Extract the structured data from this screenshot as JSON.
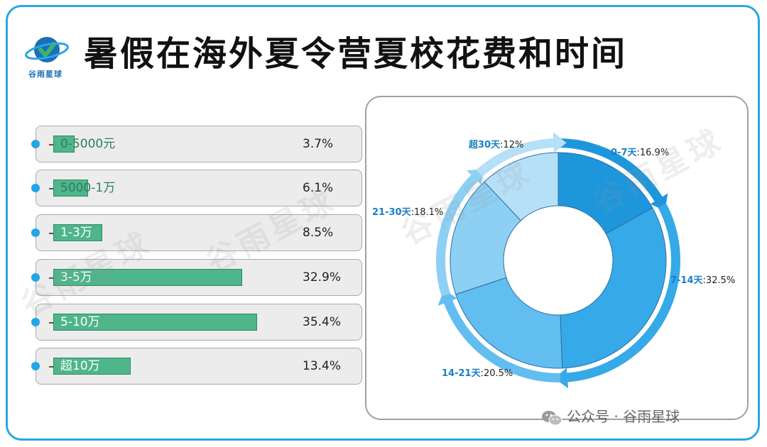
{
  "title": "暑假在海外夏令营夏校花费和时间",
  "logo": {
    "text": "谷雨星球",
    "icon": "planet-check-icon"
  },
  "watermark": "谷雨星球",
  "footer": {
    "text": "公众号 · 谷雨星球",
    "icon": "wechat-icon"
  },
  "colors": {
    "frame": "#2aa7e0",
    "bar": "#4fb58a",
    "donut": [
      "#1e96dc",
      "#36a9e8",
      "#62bdf0",
      "#8dd0f4",
      "#b6e0f8"
    ]
  },
  "chart_data": [
    {
      "type": "bar",
      "orientation": "horizontal",
      "categories": [
        "0-5000元",
        "5000-1万",
        "1-3万",
        "3-5万",
        "5-10万",
        "超10万"
      ],
      "values": [
        3.7,
        6.1,
        8.5,
        32.9,
        35.4,
        13.4
      ],
      "value_labels": [
        "3.7%",
        "6.1%",
        "8.5%",
        "32.9%",
        "35.4%",
        "13.4%"
      ],
      "unit": "%"
    },
    {
      "type": "pie",
      "style": "donut",
      "categories": [
        "0-7天",
        "7-14天",
        "14-21天",
        "21-30天",
        "超30天"
      ],
      "values": [
        16.9,
        32.5,
        20.5,
        18.1,
        12
      ],
      "category_labels": [
        "0-7天",
        "7-14天",
        "14-21天",
        "21-30天",
        "超30天"
      ],
      "value_labels": [
        ":16.9%",
        ":32.5%",
        ":20.5%",
        ":18.1%",
        ":12%"
      ]
    }
  ]
}
